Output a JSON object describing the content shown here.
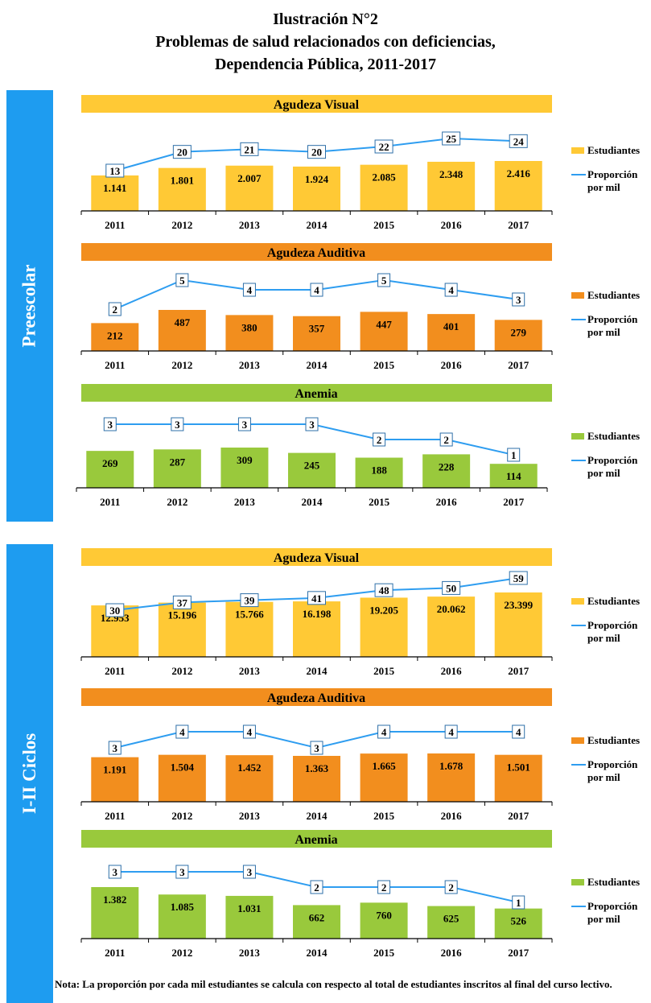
{
  "title": [
    "Ilustración N°2",
    "Problemas de salud relacionados con deficiencias,",
    "Dependencia Pública, 2011-2017"
  ],
  "bands": [
    "Preescolar",
    "I-II Ciclos"
  ],
  "legend": {
    "bars": "Estudiantes",
    "line1": "Proporción",
    "line2": "por mil"
  },
  "colors": {
    "visual": "#ffc935",
    "auditiva": "#f28e1e",
    "anemia": "#99c93c",
    "line": "#2e9df0",
    "band": "#1e9cf0"
  },
  "note": "Nota: La proporción por cada mil estudiantes se calcula con respecto al total de estudiantes inscritos al final del curso lectivo.",
  "chart_data": [
    {
      "type": "bar",
      "group": "Preescolar",
      "title": "Agudeza Visual",
      "color_key": "visual",
      "categories": [
        "2011",
        "2012",
        "2013",
        "2014",
        "2015",
        "2016",
        "2017"
      ],
      "series": [
        {
          "name": "Estudiantes",
          "values": [
            1141,
            1801,
            2007,
            1924,
            2085,
            2348,
            2416
          ],
          "labels": [
            "1.141",
            "1.801",
            "2.007",
            "1.924",
            "2.085",
            "2.348",
            "2.416"
          ]
        },
        {
          "name": "Proporción por mil",
          "values": [
            13,
            20,
            21,
            20,
            22,
            25,
            24
          ]
        }
      ]
    },
    {
      "type": "bar",
      "group": "Preescolar",
      "title": "Agudeza Auditiva",
      "color_key": "auditiva",
      "categories": [
        "2011",
        "2012",
        "2013",
        "2014",
        "2015",
        "2016",
        "2017"
      ],
      "series": [
        {
          "name": "Estudiantes",
          "values": [
            212,
            487,
            380,
            357,
            447,
            401,
            279
          ],
          "labels": [
            "212",
            "487",
            "380",
            "357",
            "447",
            "401",
            "279"
          ]
        },
        {
          "name": "Proporción por mil",
          "values": [
            2,
            5,
            4,
            4,
            5,
            4,
            3
          ]
        }
      ]
    },
    {
      "type": "bar",
      "group": "Preescolar",
      "title": "Anemia",
      "color_key": "anemia",
      "categories": [
        "2011",
        "2012",
        "2013",
        "2014",
        "2015",
        "2016",
        "2017"
      ],
      "series": [
        {
          "name": "Estudiantes",
          "values": [
            269,
            287,
            309,
            245,
            188,
            228,
            114
          ],
          "labels": [
            "269",
            "287",
            "309",
            "245",
            "188",
            "228",
            "114"
          ]
        },
        {
          "name": "Proporción por mil",
          "values": [
            3,
            3,
            3,
            3,
            2,
            2,
            1
          ]
        }
      ]
    },
    {
      "type": "bar",
      "group": "I-II Ciclos",
      "title": "Agudeza Visual",
      "color_key": "visual",
      "categories": [
        "2011",
        "2012",
        "2013",
        "2014",
        "2015",
        "2016",
        "2017"
      ],
      "series": [
        {
          "name": "Estudiantes",
          "values": [
            12953,
            15196,
            15766,
            16198,
            19205,
            20062,
            23399
          ],
          "labels": [
            "12.953",
            "15.196",
            "15.766",
            "16.198",
            "19.205",
            "20.062",
            "23.399"
          ]
        },
        {
          "name": "Proporción por mil",
          "values": [
            30,
            37,
            39,
            41,
            48,
            50,
            59
          ]
        }
      ]
    },
    {
      "type": "bar",
      "group": "I-II Ciclos",
      "title": "Agudeza Auditiva",
      "color_key": "auditiva",
      "categories": [
        "2011",
        "2012",
        "2013",
        "2014",
        "2015",
        "2016",
        "2017"
      ],
      "series": [
        {
          "name": "Estudiantes",
          "values": [
            1191,
            1504,
            1452,
            1363,
            1665,
            1678,
            1501
          ],
          "labels": [
            "1.191",
            "1.504",
            "1.452",
            "1.363",
            "1.665",
            "1.678",
            "1.501"
          ]
        },
        {
          "name": "Proporción por mil",
          "values": [
            3,
            4,
            4,
            3,
            4,
            4,
            4
          ]
        }
      ]
    },
    {
      "type": "bar",
      "group": "I-II Ciclos",
      "title": "Anemia",
      "color_key": "anemia",
      "categories": [
        "2011",
        "2012",
        "2013",
        "2014",
        "2015",
        "2016",
        "2017"
      ],
      "series": [
        {
          "name": "Estudiantes",
          "values": [
            1382,
            1085,
            1031,
            662,
            760,
            625,
            526
          ],
          "labels": [
            "1.382",
            "1.085",
            "1.031",
            "662",
            "760",
            "625",
            "526"
          ]
        },
        {
          "name": "Proporción por mil",
          "values": [
            3,
            3,
            3,
            2,
            2,
            2,
            1
          ]
        }
      ]
    }
  ]
}
